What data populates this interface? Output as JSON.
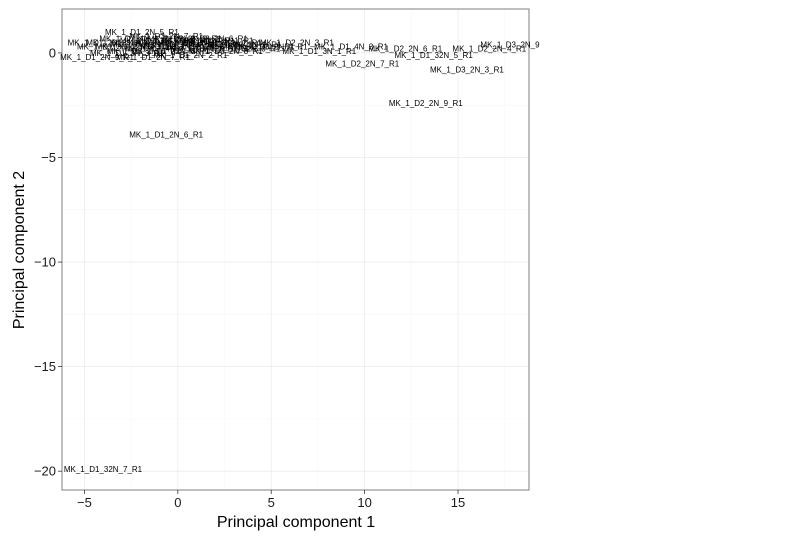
{
  "chart_data": {
    "type": "scatter",
    "title": "",
    "xlabel": "Principal component 1",
    "ylabel": "Principal component 2",
    "xlim": [
      -6.2,
      18.8
    ],
    "ylim": [
      -20.9,
      2.1
    ],
    "x_ticks": [
      -5,
      0,
      5,
      10,
      15
    ],
    "y_ticks": [
      0,
      -5,
      -10,
      -15,
      -20
    ],
    "grid": true,
    "marker": "text-label",
    "points": [
      {
        "label": "MK_1_D1_2N_5_R1",
        "x": -3.9,
        "y": 1.0
      },
      {
        "label": "MK_1_D1_2N_6_R1",
        "x": -2.6,
        "y": -3.9
      },
      {
        "label": "MK_1_D1_32N_7_R1",
        "x": -6.1,
        "y": -19.9
      },
      {
        "label": "MK_1_D2_2N_9_R1",
        "x": 11.3,
        "y": -2.4
      },
      {
        "label": "MK_1_D3_2N_3_R1",
        "x": 13.5,
        "y": -0.8
      },
      {
        "label": "MK_1_D2_2N_7_R1",
        "x": 7.9,
        "y": -0.5
      },
      {
        "label": "MK_1_D1_32N_5_R1",
        "x": 11.6,
        "y": -0.1
      },
      {
        "label": "MK_1_D1_3N_1_R1",
        "x": 5.6,
        "y": 0.1
      },
      {
        "label": "MK_1_D1_4N_3_R1",
        "x": 7.3,
        "y": 0.3
      },
      {
        "label": "MK_1_D2_2N_6_R1",
        "x": 10.2,
        "y": 0.2
      },
      {
        "label": "MK_1_D2_2N_3_R1",
        "x": 4.4,
        "y": 0.5
      },
      {
        "label": "MK_1_D2_2N_4_R1",
        "x": 14.7,
        "y": 0.2
      },
      {
        "label": "MK_1_D3_2N_9",
        "x": 16.2,
        "y": 0.4
      },
      {
        "label": "MK_1_D1_2N_1_R1",
        "x": 0.8,
        "y": 0.4
      },
      {
        "label": "MK_1_D1_2N_2_R1",
        "x": -1.3,
        "y": -0.1
      },
      {
        "label": "MK_1_D2_2N_1_R1",
        "x": 2.3,
        "y": 0.3
      },
      {
        "label": "MK_1_D1_2N_3_R1",
        "x": -5.9,
        "y": 0.5
      },
      {
        "label": "MK_1_D1_2N_4_R1",
        "x": -4.4,
        "y": 0.3
      },
      {
        "label": "MK_1_D1_2N_7_R1",
        "x": -3.3,
        "y": -0.2
      },
      {
        "label": "MK_1_D1_2N_8_R1",
        "x": -2.2,
        "y": 0.6
      },
      {
        "label": "MK_1_D1_2N_9_R1",
        "x": -6.3,
        "y": -0.2
      },
      {
        "label": "MK_1_D1_3N_2_R1",
        "x": -5.4,
        "y": 0.3
      },
      {
        "label": "MK_1_D1_3N_3_R1",
        "x": -4.7,
        "y": 0.0
      },
      {
        "label": "MK_1_D1_3N_4_R1",
        "x": -3.6,
        "y": 0.4
      },
      {
        "label": "MK_1_D1_4N_1_R1",
        "x": -2.8,
        "y": 0.2
      },
      {
        "label": "MK_1_D1_4N_2_R1",
        "x": -1.8,
        "y": 0.4
      },
      {
        "label": "MK_1_D1_4N_4_R1",
        "x": -0.9,
        "y": 0.6
      },
      {
        "label": "MK_1_D1_32N_1_R1",
        "x": -0.4,
        "y": 0.2
      },
      {
        "label": "MK_1_D1_32N_2_R1",
        "x": 0.3,
        "y": 0.5
      },
      {
        "label": "MK_1_D1_32N_3_R1",
        "x": 1.3,
        "y": 0.2
      },
      {
        "label": "MK_1_D1_32N_4_R1",
        "x": -4.9,
        "y": 0.5
      },
      {
        "label": "MK_1_D1_32N_6_R1",
        "x": -2.5,
        "y": 0.1
      },
      {
        "label": "MK_1_D2_2N_2_R1",
        "x": -1.6,
        "y": 0.7
      },
      {
        "label": "MK_1_D2_2N_5_R1",
        "x": -0.7,
        "y": 0.3
      },
      {
        "label": "MK_1_D2_2N_8_R1",
        "x": -3.1,
        "y": 0.6
      },
      {
        "label": "MK_1_D2_3N_1_R1",
        "x": 0.1,
        "y": 0.6
      },
      {
        "label": "MK_1_D2_3N_2_R1",
        "x": 1.6,
        "y": 0.4
      },
      {
        "label": "MK_1_D2_4N_1_R1",
        "x": -4.2,
        "y": 0.7
      },
      {
        "label": "MK_1_D3_2N_1_R1",
        "x": -2.0,
        "y": 0.3
      },
      {
        "label": "MK_1_D3_2N_2_R1",
        "x": -1.1,
        "y": 0.5
      },
      {
        "label": "MK_1_D3_2N_4_R1",
        "x": 3.0,
        "y": 0.3
      },
      {
        "label": "MK_1_D3_2N_5_R1",
        "x": -3.8,
        "y": 0.1
      },
      {
        "label": "MK_1_D3_2N_6_R1",
        "x": -0.2,
        "y": 0.7
      },
      {
        "label": "MK_1_D3_2N_7_R1",
        "x": -2.6,
        "y": 0.8
      },
      {
        "label": "MK_1_D3_2N_8_R1",
        "x": 0.6,
        "y": 0.1
      }
    ]
  }
}
